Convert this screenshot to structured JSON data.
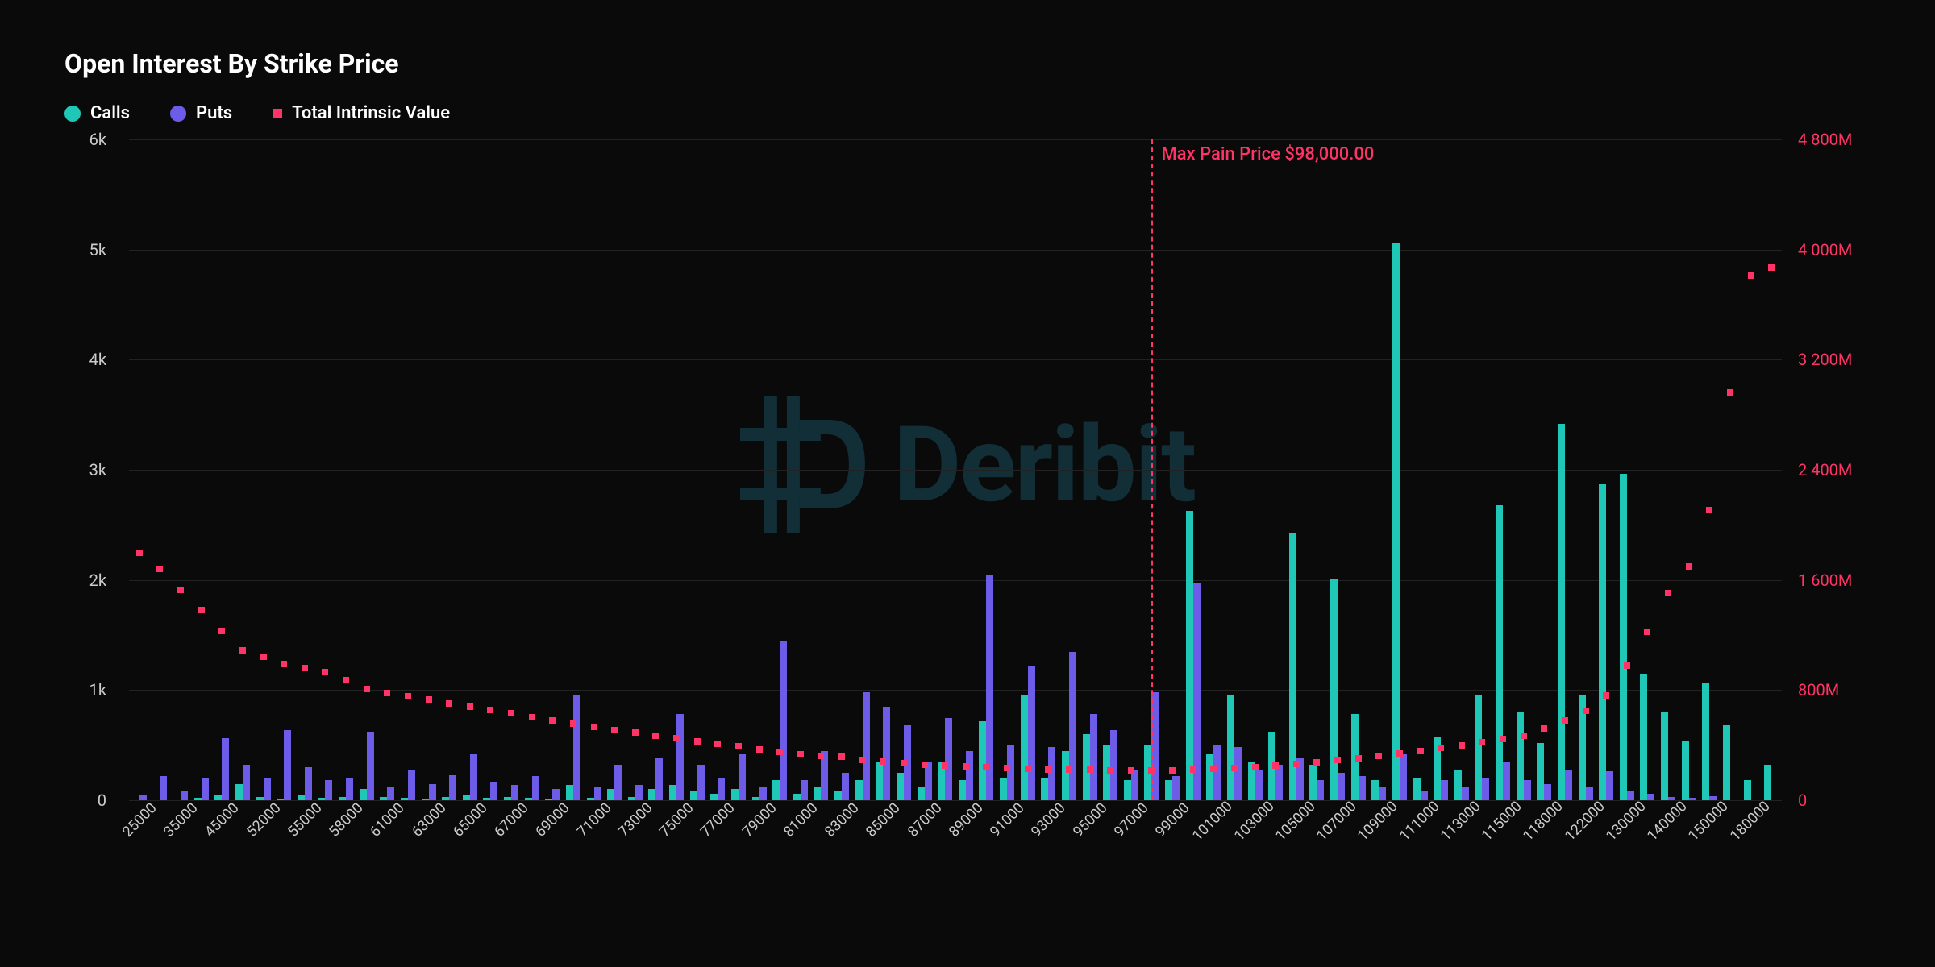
{
  "title": "Open Interest By Strike Price",
  "legend": {
    "calls": "Calls",
    "puts": "Puts",
    "intrinsic": "Total Intrinsic Value"
  },
  "colors": {
    "background": "#0a0a0a",
    "calls": "#1fc7b6",
    "puts": "#6c5ce7",
    "intrinsic": "#ff3366",
    "grid": "#222222",
    "text": "#ffffff",
    "axis_text": "#cccccc",
    "watermark": "#1a4d5c"
  },
  "watermark_text": "Deribit",
  "max_pain": {
    "label": "Max Pain Price $98,000.00",
    "strike": "98000"
  },
  "y_left": {
    "min": 0,
    "max": 6000,
    "ticks": [
      0,
      1000,
      2000,
      3000,
      4000,
      5000,
      6000
    ],
    "labels": [
      "0",
      "1k",
      "2k",
      "3k",
      "4k",
      "5k",
      "6k"
    ]
  },
  "y_right": {
    "min": 0,
    "max": 4800,
    "ticks": [
      0,
      800,
      1600,
      2400,
      3200,
      4000,
      4800
    ],
    "labels": [
      "0",
      "800M",
      "1 600M",
      "2 400M",
      "3 200M",
      "4 000M",
      "4 800M"
    ]
  },
  "x_ticks_shown": [
    "25000",
    "35000",
    "45000",
    "52000",
    "55000",
    "58000",
    "61000",
    "63000",
    "65000",
    "67000",
    "69000",
    "71000",
    "73000",
    "75000",
    "77000",
    "79000",
    "81000",
    "83000",
    "85000",
    "87000",
    "89000",
    "91000",
    "93000",
    "95000",
    "97000",
    "99000",
    "101000",
    "103000",
    "105000",
    "107000",
    "109000",
    "111000",
    "113000",
    "115000",
    "118000",
    "122000",
    "130000",
    "140000",
    "150000",
    "180000"
  ],
  "bar_width_ratio": 0.35,
  "series": [
    {
      "strike": "25000",
      "calls": 0,
      "puts": 50,
      "intrinsic": 1800
    },
    {
      "strike": "30000",
      "calls": 0,
      "puts": 220,
      "intrinsic": 1680
    },
    {
      "strike": "35000",
      "calls": 0,
      "puts": 80,
      "intrinsic": 1530
    },
    {
      "strike": "40000",
      "calls": 20,
      "puts": 200,
      "intrinsic": 1380
    },
    {
      "strike": "45000",
      "calls": 50,
      "puts": 560,
      "intrinsic": 1230
    },
    {
      "strike": "50000",
      "calls": 150,
      "puts": 320,
      "intrinsic": 1090
    },
    {
      "strike": "52000",
      "calls": 30,
      "puts": 200,
      "intrinsic": 1040
    },
    {
      "strike": "54000",
      "calls": 10,
      "puts": 640,
      "intrinsic": 990
    },
    {
      "strike": "55000",
      "calls": 50,
      "puts": 300,
      "intrinsic": 960
    },
    {
      "strike": "56000",
      "calls": 20,
      "puts": 180,
      "intrinsic": 930
    },
    {
      "strike": "58000",
      "calls": 30,
      "puts": 200,
      "intrinsic": 870
    },
    {
      "strike": "60000",
      "calls": 100,
      "puts": 620,
      "intrinsic": 810
    },
    {
      "strike": "61000",
      "calls": 30,
      "puts": 120,
      "intrinsic": 780
    },
    {
      "strike": "62000",
      "calls": 20,
      "puts": 280,
      "intrinsic": 755
    },
    {
      "strike": "63000",
      "calls": 10,
      "puts": 150,
      "intrinsic": 730
    },
    {
      "strike": "64000",
      "calls": 30,
      "puts": 230,
      "intrinsic": 705
    },
    {
      "strike": "65000",
      "calls": 50,
      "puts": 420,
      "intrinsic": 680
    },
    {
      "strike": "66000",
      "calls": 20,
      "puts": 160,
      "intrinsic": 655
    },
    {
      "strike": "67000",
      "calls": 30,
      "puts": 140,
      "intrinsic": 630
    },
    {
      "strike": "68000",
      "calls": 20,
      "puts": 220,
      "intrinsic": 605
    },
    {
      "strike": "69000",
      "calls": 10,
      "puts": 100,
      "intrinsic": 580
    },
    {
      "strike": "70000",
      "calls": 140,
      "puts": 950,
      "intrinsic": 555
    },
    {
      "strike": "71000",
      "calls": 20,
      "puts": 120,
      "intrinsic": 530
    },
    {
      "strike": "72000",
      "calls": 100,
      "puts": 320,
      "intrinsic": 510
    },
    {
      "strike": "73000",
      "calls": 30,
      "puts": 140,
      "intrinsic": 490
    },
    {
      "strike": "74000",
      "calls": 100,
      "puts": 380,
      "intrinsic": 470
    },
    {
      "strike": "75000",
      "calls": 140,
      "puts": 780,
      "intrinsic": 450
    },
    {
      "strike": "76000",
      "calls": 80,
      "puts": 320,
      "intrinsic": 430
    },
    {
      "strike": "77000",
      "calls": 60,
      "puts": 200,
      "intrinsic": 410
    },
    {
      "strike": "78000",
      "calls": 100,
      "puts": 420,
      "intrinsic": 390
    },
    {
      "strike": "79000",
      "calls": 30,
      "puts": 120,
      "intrinsic": 370
    },
    {
      "strike": "80000",
      "calls": 180,
      "puts": 1450,
      "intrinsic": 350
    },
    {
      "strike": "81000",
      "calls": 60,
      "puts": 180,
      "intrinsic": 335
    },
    {
      "strike": "82000",
      "calls": 120,
      "puts": 450,
      "intrinsic": 323
    },
    {
      "strike": "83000",
      "calls": 80,
      "puts": 250,
      "intrinsic": 315
    },
    {
      "strike": "84000",
      "calls": 180,
      "puts": 980,
      "intrinsic": 295
    },
    {
      "strike": "85000",
      "calls": 350,
      "puts": 850,
      "intrinsic": 280
    },
    {
      "strike": "86000",
      "calls": 250,
      "puts": 680,
      "intrinsic": 268
    },
    {
      "strike": "87000",
      "calls": 120,
      "puts": 350,
      "intrinsic": 258
    },
    {
      "strike": "88000",
      "calls": 350,
      "puts": 750,
      "intrinsic": 250
    },
    {
      "strike": "89000",
      "calls": 180,
      "puts": 450,
      "intrinsic": 245
    },
    {
      "strike": "90000",
      "calls": 720,
      "puts": 2050,
      "intrinsic": 240
    },
    {
      "strike": "91000",
      "calls": 200,
      "puts": 500,
      "intrinsic": 235
    },
    {
      "strike": "92000",
      "calls": 950,
      "puts": 1220,
      "intrinsic": 230
    },
    {
      "strike": "93000",
      "calls": 200,
      "puts": 480,
      "intrinsic": 225
    },
    {
      "strike": "94000",
      "calls": 450,
      "puts": 1350,
      "intrinsic": 222
    },
    {
      "strike": "95000",
      "calls": 600,
      "puts": 780,
      "intrinsic": 220
    },
    {
      "strike": "96000",
      "calls": 500,
      "puts": 640,
      "intrinsic": 218
    },
    {
      "strike": "97000",
      "calls": 180,
      "puts": 280,
      "intrinsic": 216
    },
    {
      "strike": "98000",
      "calls": 500,
      "puts": 980,
      "intrinsic": 215
    },
    {
      "strike": "99000",
      "calls": 180,
      "puts": 220,
      "intrinsic": 218
    },
    {
      "strike": "100000",
      "calls": 2630,
      "puts": 1970,
      "intrinsic": 222
    },
    {
      "strike": "101000",
      "calls": 420,
      "puts": 500,
      "intrinsic": 228
    },
    {
      "strike": "102000",
      "calls": 950,
      "puts": 480,
      "intrinsic": 235
    },
    {
      "strike": "103000",
      "calls": 350,
      "puts": 280,
      "intrinsic": 243
    },
    {
      "strike": "104000",
      "calls": 620,
      "puts": 320,
      "intrinsic": 252
    },
    {
      "strike": "105000",
      "calls": 2430,
      "puts": 380,
      "intrinsic": 262
    },
    {
      "strike": "106000",
      "calls": 320,
      "puts": 180,
      "intrinsic": 275
    },
    {
      "strike": "107000",
      "calls": 2005,
      "puts": 250,
      "intrinsic": 290
    },
    {
      "strike": "108000",
      "calls": 780,
      "puts": 220,
      "intrinsic": 306
    },
    {
      "strike": "109000",
      "calls": 180,
      "puts": 120,
      "intrinsic": 323
    },
    {
      "strike": "110000",
      "calls": 5060,
      "puts": 420,
      "intrinsic": 341
    },
    {
      "strike": "111000",
      "calls": 200,
      "puts": 80,
      "intrinsic": 360
    },
    {
      "strike": "112000",
      "calls": 580,
      "puts": 180,
      "intrinsic": 380
    },
    {
      "strike": "113000",
      "calls": 280,
      "puts": 120,
      "intrinsic": 401
    },
    {
      "strike": "114000",
      "calls": 950,
      "puts": 200,
      "intrinsic": 423
    },
    {
      "strike": "115000",
      "calls": 2680,
      "puts": 350,
      "intrinsic": 446
    },
    {
      "strike": "116000",
      "calls": 800,
      "puts": 180,
      "intrinsic": 470
    },
    {
      "strike": "118000",
      "calls": 520,
      "puts": 150,
      "intrinsic": 522
    },
    {
      "strike": "120000",
      "calls": 3420,
      "puts": 280,
      "intrinsic": 580
    },
    {
      "strike": "122000",
      "calls": 950,
      "puts": 120,
      "intrinsic": 647
    },
    {
      "strike": "125000",
      "calls": 2870,
      "puts": 260,
      "intrinsic": 760
    },
    {
      "strike": "130000",
      "calls": 2960,
      "puts": 80,
      "intrinsic": 975
    },
    {
      "strike": "135000",
      "calls": 1150,
      "puts": 60,
      "intrinsic": 1225
    },
    {
      "strike": "140000",
      "calls": 800,
      "puts": 30,
      "intrinsic": 1505
    },
    {
      "strike": "145000",
      "calls": 540,
      "puts": 20,
      "intrinsic": 1695
    },
    {
      "strike": "150000",
      "calls": 1060,
      "puts": 40,
      "intrinsic": 2105
    },
    {
      "strike": "160000",
      "calls": 680,
      "puts": 0,
      "intrinsic": 2960
    },
    {
      "strike": "180000",
      "calls": 180,
      "puts": 0,
      "intrinsic": 3810
    },
    {
      "strike": "200000",
      "calls": 320,
      "puts": 0,
      "intrinsic": 3870
    }
  ]
}
